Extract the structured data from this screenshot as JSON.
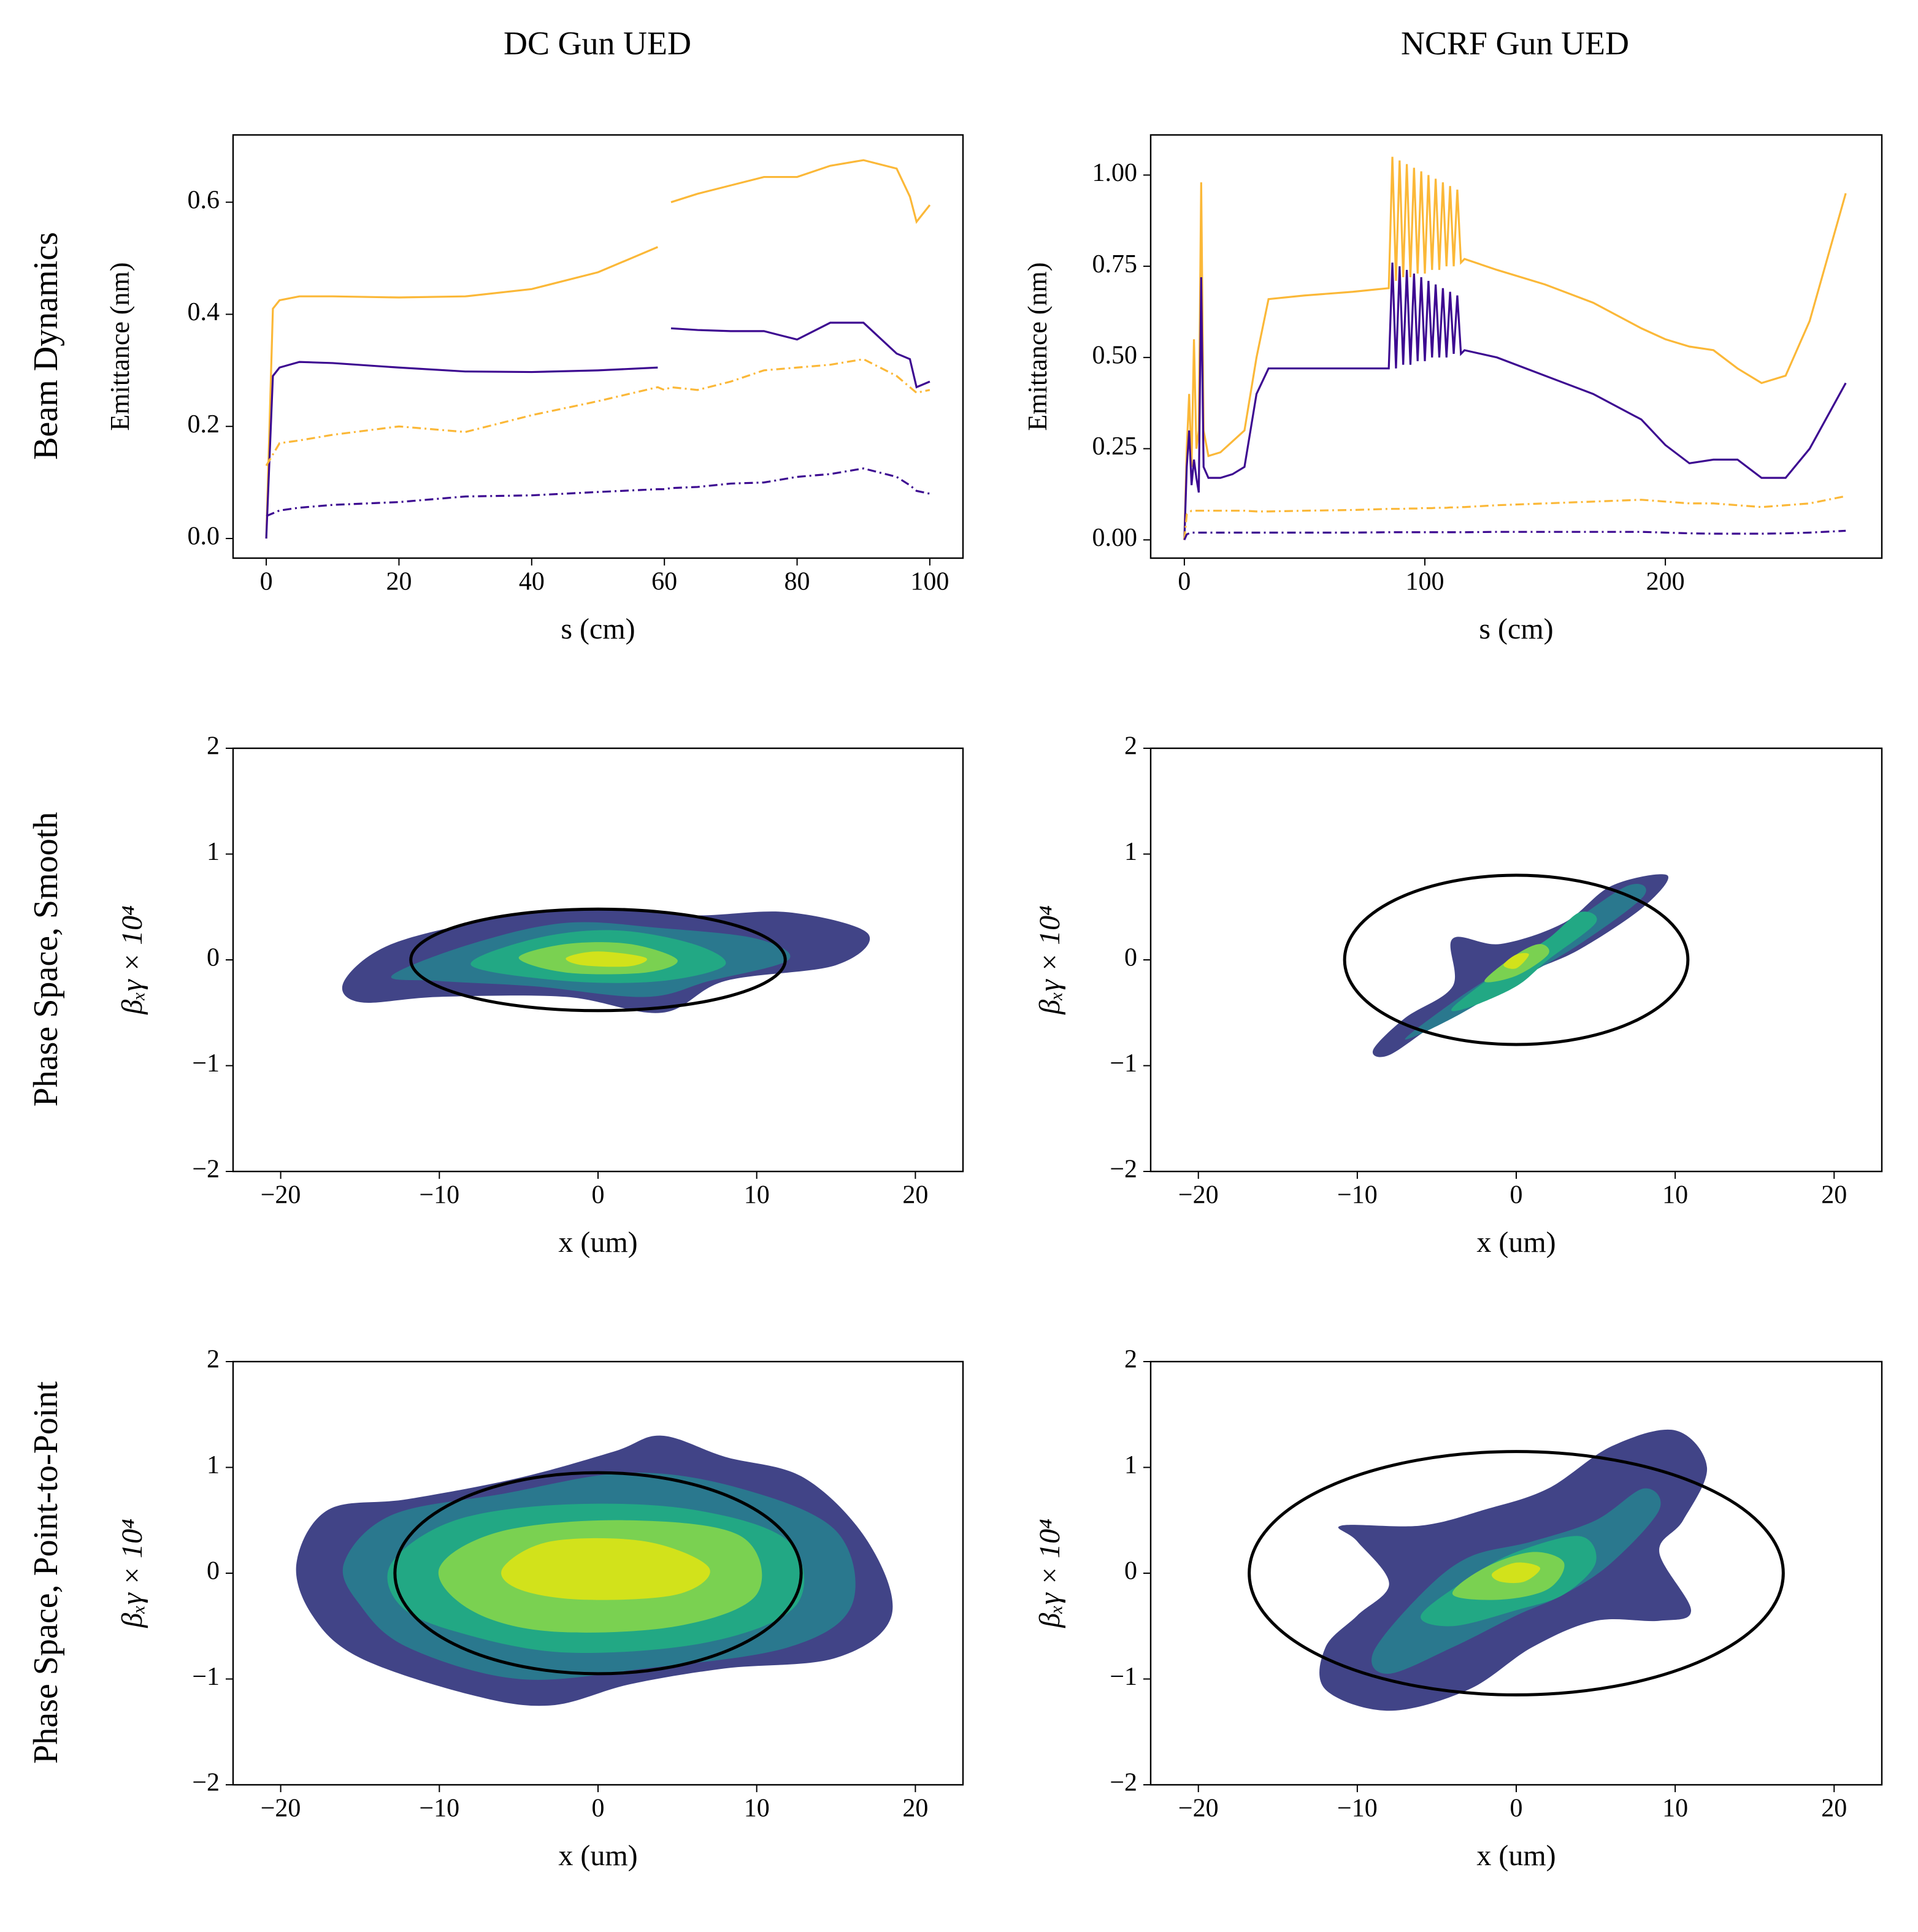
{
  "column_titles": [
    "DC Gun UED",
    "NCRF Gun UED"
  ],
  "row_labels": [
    "Beam Dynamics",
    "Phase Space, Smooth",
    "Phase Space, Point-to-Point"
  ],
  "chart_data": [
    {
      "type": "line",
      "xlabel": "s (cm)",
      "ylabel": "Emittance (nm)",
      "x": [
        0,
        1,
        2,
        5,
        10,
        20,
        30,
        40,
        50,
        59,
        60,
        61,
        65,
        70,
        75,
        80,
        85,
        90,
        95,
        97,
        98,
        100
      ],
      "series": [
        {
          "color": "#fbb838",
          "linestyle": "solid",
          "values": [
            0.0,
            0.41,
            0.425,
            0.432,
            0.432,
            0.43,
            0.432,
            0.445,
            0.475,
            0.52,
            null,
            0.6,
            0.615,
            0.63,
            0.645,
            0.645,
            0.665,
            0.675,
            0.66,
            0.61,
            0.565,
            0.595
          ]
        },
        {
          "color": "#3d0a91",
          "linestyle": "solid",
          "values": [
            0.0,
            0.29,
            0.305,
            0.315,
            0.313,
            0.305,
            0.298,
            0.297,
            0.3,
            0.305,
            null,
            0.375,
            0.372,
            0.37,
            0.37,
            0.355,
            0.385,
            0.385,
            0.33,
            0.32,
            0.27,
            0.28
          ]
        },
        {
          "color": "#fbb838",
          "linestyle": "dashdot",
          "values": [
            0.13,
            0.15,
            0.17,
            0.175,
            0.185,
            0.2,
            0.19,
            0.22,
            0.245,
            0.27,
            0.265,
            0.27,
            0.265,
            0.28,
            0.3,
            0.305,
            0.31,
            0.32,
            0.29,
            0.27,
            0.26,
            0.265
          ]
        },
        {
          "color": "#3d0a91",
          "linestyle": "dashdot",
          "values": [
            0.04,
            0.045,
            0.05,
            0.055,
            0.06,
            0.065,
            0.075,
            0.077,
            0.083,
            0.088,
            0.088,
            0.09,
            0.092,
            0.098,
            0.1,
            0.11,
            0.115,
            0.125,
            0.11,
            0.095,
            0.085,
            0.08
          ]
        }
      ],
      "xlim": [
        -5,
        105
      ],
      "ylim": [
        -0.035,
        0.72
      ],
      "xticks": [
        0,
        20,
        40,
        60,
        80,
        100
      ],
      "yticks": [
        {
          "value": 0,
          "label": "0.0"
        },
        0.2,
        0.4,
        0.6
      ]
    },
    {
      "type": "line",
      "xlabel": "s (cm)",
      "ylabel": "Emittance (nm)",
      "x": [
        0,
        1,
        2,
        3,
        4,
        5,
        6,
        7,
        8,
        10,
        15,
        20,
        25,
        30,
        35,
        50,
        70,
        85,
        86.5,
        88,
        89.5,
        91,
        92.5,
        94,
        95.5,
        97,
        98.5,
        100,
        101.5,
        103,
        104.5,
        106,
        107.5,
        109,
        110.5,
        112,
        113.5,
        115,
        116.5,
        130,
        150,
        170,
        190,
        200,
        210,
        220,
        230,
        240,
        250,
        260,
        275
      ],
      "series": [
        {
          "color": "#fbb838",
          "linestyle": "solid",
          "values": [
            0.0,
            0.25,
            0.4,
            0.2,
            0.55,
            0.25,
            0.3,
            0.98,
            0.3,
            0.23,
            0.24,
            0.27,
            0.3,
            0.5,
            0.66,
            0.67,
            0.68,
            0.69,
            1.05,
            0.71,
            1.04,
            0.72,
            1.03,
            0.72,
            1.02,
            0.73,
            1.01,
            0.73,
            1.0,
            0.74,
            0.99,
            0.74,
            0.98,
            0.75,
            0.97,
            0.75,
            0.96,
            0.76,
            0.77,
            0.74,
            0.7,
            0.65,
            0.58,
            0.55,
            0.53,
            0.52,
            0.47,
            0.43,
            0.45,
            0.6,
            0.95
          ]
        },
        {
          "color": "#3d0a91",
          "linestyle": "solid",
          "values": [
            0.0,
            0.2,
            0.3,
            0.15,
            0.22,
            0.17,
            0.13,
            0.72,
            0.2,
            0.17,
            0.17,
            0.18,
            0.2,
            0.4,
            0.47,
            0.47,
            0.47,
            0.47,
            0.76,
            0.47,
            0.75,
            0.48,
            0.74,
            0.48,
            0.73,
            0.49,
            0.72,
            0.49,
            0.71,
            0.5,
            0.7,
            0.5,
            0.69,
            0.5,
            0.68,
            0.51,
            0.67,
            0.51,
            0.52,
            0.5,
            0.45,
            0.4,
            0.33,
            0.26,
            0.21,
            0.22,
            0.22,
            0.17,
            0.17,
            0.25,
            0.43
          ]
        },
        {
          "color": "#fbb838",
          "linestyle": "dashdot",
          "values": [
            0.0,
            0.07,
            0.075,
            0.08,
            0.08,
            0.08,
            0.08,
            0.08,
            0.08,
            0.08,
            0.08,
            0.08,
            0.08,
            0.078,
            0.078,
            0.08,
            0.082,
            0.085,
            0.085,
            0.085,
            0.085,
            0.085,
            0.086,
            0.086,
            0.086,
            0.086,
            0.087,
            0.087,
            0.087,
            0.087,
            0.088,
            0.088,
            0.088,
            0.088,
            0.089,
            0.089,
            0.089,
            0.09,
            0.09,
            0.095,
            0.1,
            0.105,
            0.11,
            0.105,
            0.1,
            0.1,
            0.095,
            0.09,
            0.095,
            0.1,
            0.12
          ]
        },
        {
          "color": "#3d0a91",
          "linestyle": "dashdot",
          "values": [
            0.0,
            0.015,
            0.018,
            0.02,
            0.02,
            0.02,
            0.02,
            0.02,
            0.02,
            0.02,
            0.02,
            0.02,
            0.02,
            0.02,
            0.02,
            0.02,
            0.02,
            0.021,
            0.021,
            0.021,
            0.021,
            0.021,
            0.021,
            0.021,
            0.021,
            0.021,
            0.021,
            0.021,
            0.021,
            0.021,
            0.021,
            0.021,
            0.021,
            0.021,
            0.021,
            0.021,
            0.021,
            0.021,
            0.021,
            0.022,
            0.022,
            0.022,
            0.022,
            0.02,
            0.018,
            0.017,
            0.017,
            0.017,
            0.018,
            0.02,
            0.025
          ]
        }
      ],
      "xlim": [
        -14,
        290
      ],
      "ylim": [
        -0.05,
        1.11
      ],
      "xticks": [
        0,
        100,
        200
      ],
      "yticks": [
        {
          "value": 0,
          "label": "0.00"
        },
        0.25,
        {
          "value": 0.5,
          "label": "0.50"
        },
        0.75,
        {
          "value": 1,
          "label": "1.00"
        }
      ]
    },
    {
      "type": "contour",
      "xlabel": "x (um)",
      "ylabel": "βₓγ × 10⁴",
      "levels": [
        {
          "color": "#414487",
          "x": [
            -16,
            -13,
            -6,
            0,
            6,
            12,
            17,
            15,
            8,
            4,
            -2,
            -10,
            -15
          ],
          "y": [
            -0.2,
            0.15,
            0.4,
            0.48,
            0.42,
            0.45,
            0.25,
            -0.05,
            -0.2,
            -0.5,
            -0.35,
            -0.35,
            -0.4
          ]
        },
        {
          "color": "#2a788e",
          "x": [
            -13,
            -8,
            -2,
            4,
            10,
            12,
            7,
            3,
            -4,
            -10
          ],
          "y": [
            -0.15,
            0.15,
            0.35,
            0.3,
            0.2,
            0,
            -0.2,
            -0.35,
            -0.25,
            -0.2
          ]
        },
        {
          "color": "#22a884",
          "x": [
            -8,
            -4,
            1,
            6,
            8,
            4,
            -2
          ],
          "y": [
            -0.05,
            0.2,
            0.28,
            0.15,
            -0.05,
            -0.2,
            -0.2
          ]
        },
        {
          "color": "#7ad151",
          "x": [
            -5,
            -2,
            2,
            5,
            3,
            -2
          ],
          "y": [
            0.02,
            0.15,
            0.15,
            0.0,
            -0.12,
            -0.12
          ]
        },
        {
          "color": "#d2e21b",
          "x": [
            -2,
            0,
            3,
            2,
            -1
          ],
          "y": [
            0.02,
            0.08,
            0.02,
            -0.06,
            -0.05
          ]
        }
      ],
      "ellipse": {
        "cx": 0,
        "cy": 0,
        "rx": 11.8,
        "ry": 0.48,
        "color": "#000000"
      },
      "xlim": [
        -23,
        23
      ],
      "ylim": [
        -2,
        2
      ],
      "xticks": [
        {
          "value": -20,
          "label": "−20"
        },
        {
          "value": -10,
          "label": "−10"
        },
        0,
        10,
        20
      ],
      "yticks": [
        {
          "value": -2,
          "label": "−2"
        },
        {
          "value": -1,
          "label": "−1"
        },
        0,
        1,
        2
      ]
    },
    {
      "type": "contour",
      "xlabel": "x (um)",
      "ylabel": "βₓγ × 10⁴",
      "levels": [
        {
          "color": "#414487",
          "x": [
            -9,
            -7,
            -4,
            -4,
            -1,
            3,
            6,
            9.5,
            8,
            4,
            1,
            -1,
            -5,
            -8
          ],
          "y": [
            -0.85,
            -0.55,
            -0.25,
            0.2,
            0.15,
            0.35,
            0.7,
            0.8,
            0.5,
            0.1,
            -0.1,
            -0.25,
            -0.6,
            -0.9
          ]
        },
        {
          "color": "#2a788e",
          "x": [
            -7,
            -4,
            -1,
            3,
            7,
            8,
            4,
            0,
            -4
          ],
          "y": [
            -0.75,
            -0.4,
            -0.1,
            0.3,
            0.7,
            0.6,
            0.15,
            -0.2,
            -0.55
          ]
        },
        {
          "color": "#22a884",
          "x": [
            -4,
            -1,
            2,
            4,
            5,
            2,
            0,
            -3
          ],
          "y": [
            -0.45,
            -0.1,
            0.2,
            0.45,
            0.35,
            0,
            -0.25,
            -0.45
          ]
        },
        {
          "color": "#7ad151",
          "x": [
            -2,
            0,
            1.5,
            2,
            0
          ],
          "y": [
            -0.2,
            0.05,
            0.15,
            0.05,
            -0.15
          ]
        },
        {
          "color": "#d2e21b",
          "x": [
            -0.8,
            0,
            0.8,
            0
          ],
          "y": [
            -0.05,
            0.05,
            0.05,
            -0.08
          ]
        }
      ],
      "ellipse": {
        "cx": 0,
        "cy": 0,
        "rx": 10.8,
        "ry": 0.8,
        "color": "#000000"
      },
      "xlim": [
        -23,
        23
      ],
      "ylim": [
        -2,
        2
      ],
      "xticks": [
        {
          "value": -20,
          "label": "−20"
        },
        {
          "value": -10,
          "label": "−10"
        },
        0,
        10,
        20
      ],
      "yticks": [
        {
          "value": -2,
          "label": "−2"
        },
        {
          "value": -1,
          "label": "−1"
        },
        0,
        1,
        2
      ]
    },
    {
      "type": "contour",
      "xlabel": "x (um)",
      "ylabel": "βₓγ × 10⁴",
      "levels": [
        {
          "color": "#414487",
          "x": [
            -19,
            -17,
            -12,
            -5,
            1,
            4,
            8,
            13,
            17,
            18.5,
            15,
            8,
            2,
            -3,
            -8,
            -15,
            -18
          ],
          "y": [
            0.1,
            0.6,
            0.7,
            0.9,
            1.15,
            1.3,
            1.1,
            0.9,
            0.3,
            -0.4,
            -0.8,
            -0.9,
            -1.05,
            -1.25,
            -1.15,
            -0.8,
            -0.4
          ]
        },
        {
          "color": "#2a788e",
          "x": [
            -16,
            -13,
            -6,
            2,
            9,
            15,
            16,
            12,
            3,
            -5,
            -12,
            -15
          ],
          "y": [
            0.1,
            0.55,
            0.75,
            0.95,
            0.8,
            0.4,
            -0.3,
            -0.7,
            -0.9,
            -1.0,
            -0.7,
            -0.3
          ]
        },
        {
          "color": "#22a884",
          "x": [
            -13,
            -9,
            -2,
            6,
            12,
            12.5,
            7,
            -2,
            -9,
            -12.5
          ],
          "y": [
            0.1,
            0.5,
            0.65,
            0.6,
            0.3,
            -0.3,
            -0.65,
            -0.75,
            -0.55,
            -0.3
          ]
        },
        {
          "color": "#7ad151",
          "x": [
            -10,
            -6,
            2,
            9,
            10,
            5,
            -3,
            -8
          ],
          "y": [
            0.05,
            0.4,
            0.5,
            0.35,
            -0.2,
            -0.5,
            -0.55,
            -0.35
          ]
        },
        {
          "color": "#d2e21b",
          "x": [
            -6,
            -3,
            3,
            7,
            5,
            -1,
            -5
          ],
          "y": [
            0.05,
            0.3,
            0.3,
            0.05,
            -0.2,
            -0.25,
            -0.15
          ]
        }
      ],
      "ellipse": {
        "cx": 0,
        "cy": 0,
        "rx": 12.8,
        "ry": 0.95,
        "color": "#000000"
      },
      "xlim": [
        -23,
        23
      ],
      "ylim": [
        -2,
        2
      ],
      "xticks": [
        {
          "value": -20,
          "label": "−20"
        },
        {
          "value": -10,
          "label": "−10"
        },
        0,
        10,
        20
      ],
      "yticks": [
        {
          "value": -2,
          "label": "−2"
        },
        {
          "value": -1,
          "label": "−1"
        },
        0,
        1,
        2
      ]
    },
    {
      "type": "contour",
      "xlabel": "x (um)",
      "ylabel": "βₓγ × 10⁴",
      "levels": [
        {
          "color": "#414487",
          "x": [
            -12,
            -10,
            -8,
            -10,
            -11,
            -6,
            -2,
            2,
            6,
            10,
            12,
            10.5,
            9,
            11,
            9,
            5,
            1,
            -3,
            -8,
            -12
          ],
          "y": [
            -0.7,
            -0.4,
            -0.1,
            0.3,
            0.45,
            0.45,
            0.6,
            0.8,
            1.2,
            1.35,
            1.0,
            0.5,
            0.2,
            -0.35,
            -0.45,
            -0.45,
            -0.7,
            -1.1,
            -1.3,
            -1.1
          ]
        },
        {
          "color": "#2a788e",
          "x": [
            -9,
            -6,
            -3,
            1,
            5,
            8,
            9,
            6,
            3,
            0,
            -4,
            -8
          ],
          "y": [
            -0.75,
            -0.2,
            0.15,
            0.3,
            0.5,
            0.8,
            0.6,
            0.1,
            -0.2,
            -0.4,
            -0.7,
            -0.95
          ]
        },
        {
          "color": "#22a884",
          "x": [
            -6,
            -3,
            0,
            4,
            5,
            3,
            0,
            -4
          ],
          "y": [
            -0.4,
            -0.05,
            0.2,
            0.35,
            0.1,
            -0.2,
            -0.35,
            -0.5
          ]
        },
        {
          "color": "#7ad151",
          "x": [
            -4,
            -2,
            1,
            3,
            2,
            -1
          ],
          "y": [
            -0.2,
            0.05,
            0.2,
            0.1,
            -0.15,
            -0.25
          ]
        },
        {
          "color": "#d2e21b",
          "x": [
            -1.5,
            0,
            1.5,
            0.5,
            -1
          ],
          "y": [
            0,
            0.1,
            0.05,
            -0.08,
            -0.08
          ]
        }
      ],
      "ellipse": {
        "cx": 0,
        "cy": 0,
        "rx": 16.8,
        "ry": 1.15,
        "color": "#000000"
      },
      "xlim": [
        -23,
        23
      ],
      "ylim": [
        -2,
        2
      ],
      "xticks": [
        {
          "value": -20,
          "label": "−20"
        },
        {
          "value": -10,
          "label": "−10"
        },
        0,
        10,
        20
      ],
      "yticks": [
        {
          "value": -2,
          "label": "−2"
        },
        {
          "value": -1,
          "label": "−1"
        },
        0,
        1,
        2
      ]
    }
  ]
}
